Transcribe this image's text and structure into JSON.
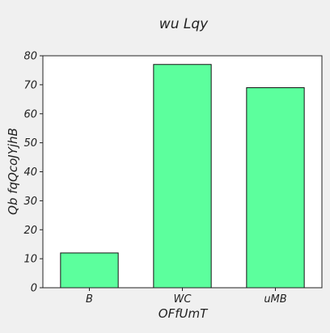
{
  "chart_data": {
    "type": "bar",
    "title": "wu Lqy",
    "xlabel": "OFfUmT",
    "ylabel": "Qb fqQcoJYjhB",
    "categories": [
      "B",
      "WC",
      "uMB"
    ],
    "values": [
      12,
      77,
      69
    ],
    "ylim": [
      0,
      80
    ],
    "yticks": [
      0,
      10,
      20,
      30,
      40,
      50,
      60,
      70,
      80
    ],
    "grid": false,
    "legend": "none",
    "bar_color": "#5cff9d",
    "bar_edge_color": "#111111",
    "plot_background": "#ffffff",
    "figure_background": "#f0f0f0"
  }
}
